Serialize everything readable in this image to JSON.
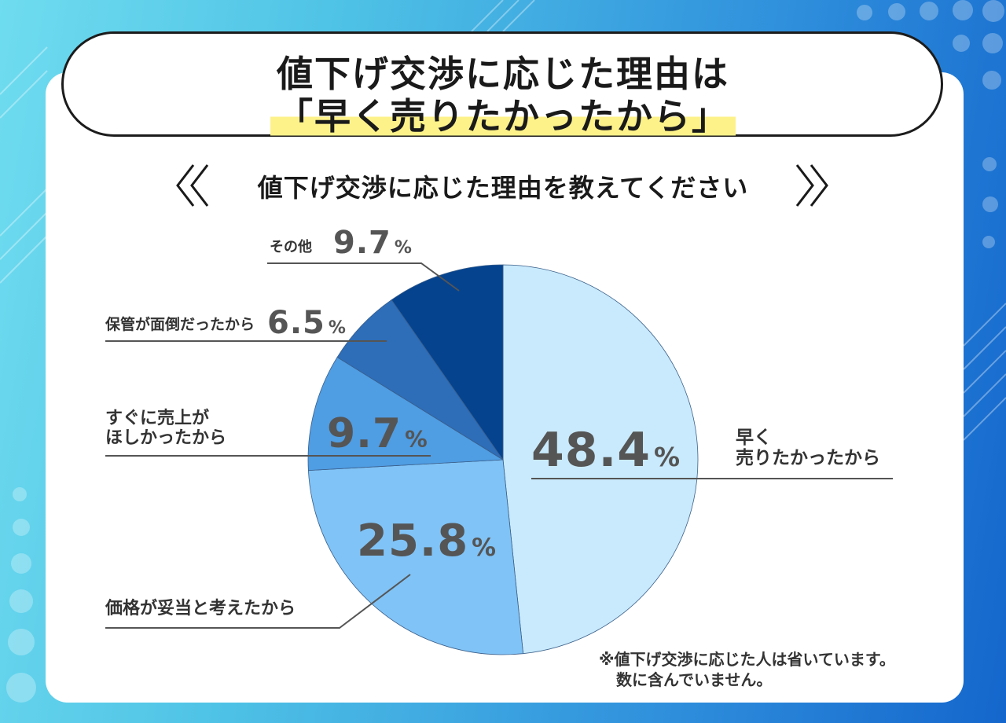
{
  "header": {
    "title_line1": "値下げ交渉に応じた理由は",
    "title_line2": "「早く売りたかったから」"
  },
  "question": "値下げ交渉に応じた理由を教えてください",
  "chart_data": {
    "type": "pie",
    "unit": "%",
    "slices": [
      {
        "label_lines": [
          "早く",
          "売りたかったから"
        ],
        "value": 48.4,
        "display": "48.4",
        "color": "#c9eafc"
      },
      {
        "label_lines": [
          "価格が妥当と考えたから"
        ],
        "value": 25.8,
        "display": "25.8",
        "color": "#80c3f6"
      },
      {
        "label_lines": [
          "すぐに売上が",
          "ほしかったから"
        ],
        "value": 9.7,
        "display": "9.7",
        "color": "#4f9de3"
      },
      {
        "label_lines": [
          "保管が面倒だったから"
        ],
        "value": 6.5,
        "display": "6.5",
        "color": "#2e6db8"
      },
      {
        "label_lines": [
          "その他"
        ],
        "value": 9.7,
        "display": "9.7",
        "color": "#05438f"
      }
    ]
  },
  "note": {
    "line1": "※値下げ交渉に応じた人は省いています。",
    "line2": "数に含んでいません。"
  }
}
